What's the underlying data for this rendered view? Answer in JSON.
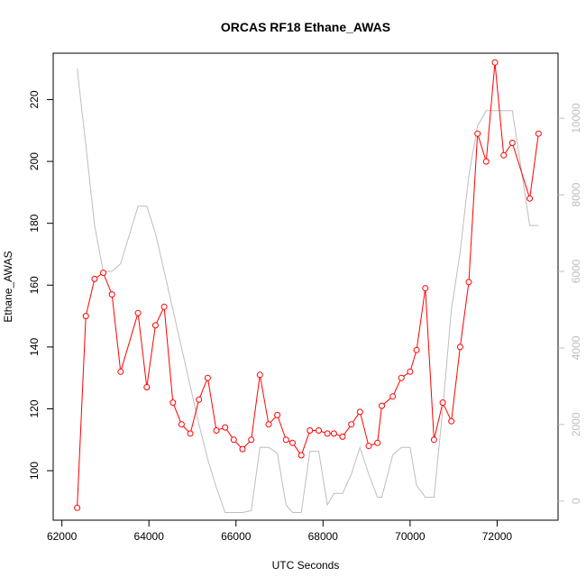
{
  "chart_data": {
    "type": "line",
    "title": "ORCAS RF18 Ethane_AWAS",
    "xlabel": "UTC Seconds",
    "ylabel": "Ethane_AWAS",
    "xlim": [
      61800,
      73400
    ],
    "ylim": [
      84,
      235
    ],
    "y2lim": [
      -500,
      11700
    ],
    "xticks": [
      62000,
      64000,
      66000,
      68000,
      70000,
      72000
    ],
    "yticks": [
      100,
      120,
      140,
      160,
      180,
      200,
      220
    ],
    "y2ticks": [
      0,
      2000,
      4000,
      6000,
      8000,
      10000
    ],
    "colors": {
      "primary": "#ff0000",
      "secondary": "#bebebe"
    },
    "series": [
      {
        "axis": "left",
        "color": "#ff0000",
        "markers": "open-circle",
        "points": [
          [
            62350,
            88
          ],
          [
            62550,
            150
          ],
          [
            62750,
            162
          ],
          [
            62950,
            164
          ],
          [
            63150,
            157
          ],
          [
            63350,
            132
          ],
          [
            63750,
            151
          ],
          [
            63950,
            127
          ],
          [
            64150,
            147
          ],
          [
            64350,
            153
          ],
          [
            64550,
            122
          ],
          [
            64750,
            115
          ],
          [
            64950,
            112
          ],
          [
            65150,
            123
          ],
          [
            65350,
            130
          ],
          [
            65550,
            113
          ],
          [
            65750,
            114
          ],
          [
            65950,
            110
          ],
          [
            66150,
            107
          ],
          [
            66350,
            110
          ],
          [
            66550,
            131
          ],
          [
            66750,
            115
          ],
          [
            66950,
            118
          ],
          [
            67150,
            110
          ],
          [
            67300,
            109
          ],
          [
            67500,
            105
          ],
          [
            67700,
            113
          ],
          [
            67900,
            113
          ],
          [
            68100,
            112
          ],
          [
            68250,
            112
          ],
          [
            68450,
            111
          ],
          [
            68650,
            115
          ],
          [
            68850,
            119
          ],
          [
            69050,
            108
          ],
          [
            69250,
            109
          ],
          [
            69350,
            121
          ],
          [
            69600,
            124
          ],
          [
            69800,
            130
          ],
          [
            70000,
            132
          ],
          [
            70150,
            139
          ],
          [
            70350,
            159
          ],
          [
            70550,
            110
          ],
          [
            70750,
            122
          ],
          [
            70950,
            116
          ],
          [
            71150,
            140
          ],
          [
            71350,
            161
          ],
          [
            71550,
            209
          ],
          [
            71750,
            200
          ],
          [
            71950,
            232
          ],
          [
            72150,
            202
          ],
          [
            72350,
            206
          ],
          [
            72750,
            188
          ],
          [
            72950,
            209
          ]
        ]
      },
      {
        "axis": "right",
        "color": "#bebebe",
        "markers": "none",
        "points": [
          [
            62350,
            11300
          ],
          [
            62550,
            9300
          ],
          [
            62750,
            7200
          ],
          [
            62950,
            6000
          ],
          [
            63150,
            6000
          ],
          [
            63350,
            6200
          ],
          [
            63750,
            7700
          ],
          [
            63950,
            7700
          ],
          [
            64150,
            7000
          ],
          [
            64350,
            6000
          ],
          [
            64550,
            5000
          ],
          [
            64750,
            4000
          ],
          [
            64950,
            3000
          ],
          [
            65150,
            2000
          ],
          [
            65350,
            1100
          ],
          [
            65550,
            350
          ],
          [
            65750,
            -300
          ],
          [
            65950,
            -300
          ],
          [
            66150,
            -300
          ],
          [
            66350,
            -250
          ],
          [
            66550,
            1400
          ],
          [
            66750,
            1400
          ],
          [
            66950,
            1250
          ],
          [
            67150,
            -100
          ],
          [
            67300,
            -300
          ],
          [
            67500,
            -300
          ],
          [
            67700,
            1300
          ],
          [
            67900,
            1300
          ],
          [
            68100,
            -100
          ],
          [
            68250,
            200
          ],
          [
            68450,
            200
          ],
          [
            68650,
            700
          ],
          [
            68850,
            1400
          ],
          [
            69050,
            700
          ],
          [
            69250,
            100
          ],
          [
            69350,
            100
          ],
          [
            69600,
            1200
          ],
          [
            69800,
            1400
          ],
          [
            70000,
            1400
          ],
          [
            70150,
            400
          ],
          [
            70350,
            100
          ],
          [
            70550,
            100
          ],
          [
            70750,
            2400
          ],
          [
            70950,
            5000
          ],
          [
            71150,
            6500
          ],
          [
            71350,
            8500
          ],
          [
            71550,
            9800
          ],
          [
            71750,
            10200
          ],
          [
            71950,
            10200
          ],
          [
            72150,
            10200
          ],
          [
            72350,
            10200
          ],
          [
            72750,
            7200
          ],
          [
            72950,
            7200
          ]
        ]
      }
    ]
  }
}
